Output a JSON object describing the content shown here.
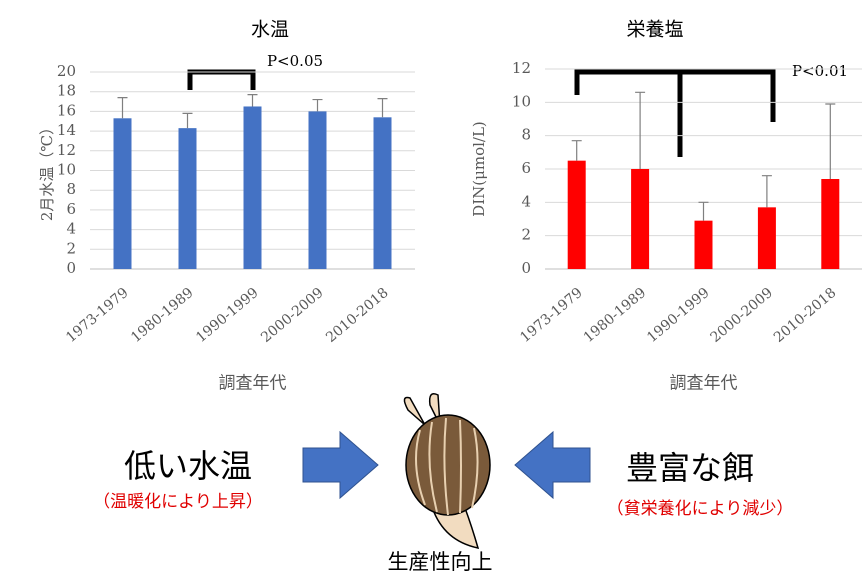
{
  "chart_data": [
    {
      "type": "bar",
      "title": "水温",
      "ylabel": "2月水温（℃）",
      "xlabel": "調査年代",
      "annotation": "P<0.05",
      "categories": [
        "1973-1979",
        "1980-1989",
        "1990-1999",
        "2000-2009",
        "2010-2018"
      ],
      "values": [
        15.3,
        14.3,
        16.5,
        16.0,
        15.4
      ],
      "errors": [
        2.1,
        1.5,
        1.2,
        1.2,
        1.9
      ],
      "color": "#4472c4",
      "ylim": [
        0,
        20
      ],
      "yticks": [
        0,
        2,
        4,
        6,
        8,
        10,
        12,
        14,
        16,
        18,
        20
      ],
      "grid": true
    },
    {
      "type": "bar",
      "title": "栄養塩",
      "ylabel": "DIN(μmol/L)",
      "xlabel": "調査年代",
      "annotation": "P<0.01",
      "categories": [
        "1973-1979",
        "1980-1989",
        "1990-1999",
        "2000-2009",
        "2010-2018"
      ],
      "values": [
        6.5,
        6.0,
        2.9,
        3.7,
        5.4
      ],
      "errors": [
        1.2,
        4.6,
        1.1,
        1.9,
        4.5
      ],
      "color": "#ff0000",
      "ylim": [
        0,
        12
      ],
      "yticks": [
        0,
        2,
        4,
        6,
        8,
        10,
        12
      ],
      "grid": true
    }
  ],
  "diagram": {
    "left_label": "低い水温",
    "left_note": "（温暖化により上昇）",
    "right_label": "豊富な餌",
    "right_note": "（貧栄養化により減少）",
    "bottom_label": "生産性向上"
  }
}
